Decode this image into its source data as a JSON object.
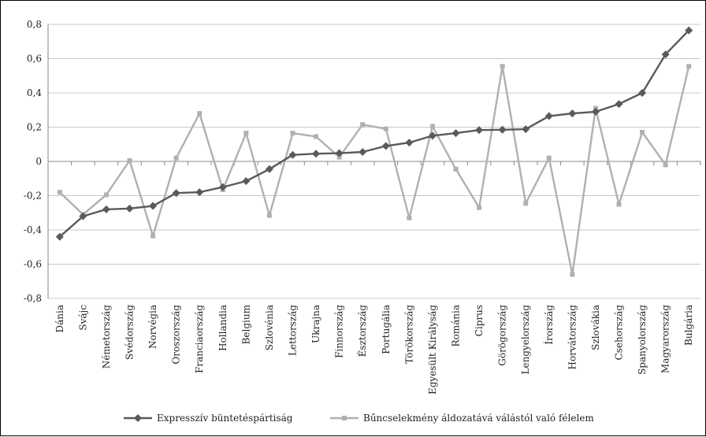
{
  "chart_data": {
    "type": "line",
    "title": "",
    "xlabel": "",
    "ylabel": "",
    "ylim": [
      -0.8,
      0.8
    ],
    "yticks": [
      "-0,8",
      "-0,6",
      "-0,4",
      "-0,2",
      "0",
      "0,2",
      "0,4",
      "0,6",
      "0,8"
    ],
    "grid": true,
    "legend_position": "bottom",
    "categories": [
      "Dánia",
      "Svájc",
      "Németország",
      "Svédország",
      "Norvégia",
      "Oroszország",
      "Franciaország",
      "Hollandia",
      "Belgium",
      "Szlovénia",
      "Lettország",
      "Ukrajna",
      "Finnország",
      "Észtország",
      "Portugália",
      "Törökország",
      "Egyesült Királyság",
      "Románia",
      "Ciprus",
      "Görögország",
      "Lengyelország",
      "Írország",
      "Horvátország",
      "Szlovákia",
      "Csehország",
      "Spanyolország",
      "Magyarország",
      "Bulgária"
    ],
    "series": [
      {
        "name": "Expresszív büntetéspártiság",
        "color": "#5a5a5a",
        "marker": "diamond",
        "values": [
          -0.44,
          -0.32,
          -0.28,
          -0.275,
          -0.26,
          -0.185,
          -0.18,
          -0.15,
          -0.115,
          -0.045,
          0.038,
          0.045,
          0.048,
          0.055,
          0.09,
          0.11,
          0.15,
          0.165,
          0.183,
          0.185,
          0.188,
          0.265,
          0.28,
          0.29,
          0.335,
          0.4,
          0.625,
          0.765
        ]
      },
      {
        "name": "Bűncselekmény áldozatává válástól való félelem",
        "color": "#b0b0b0",
        "marker": "square",
        "values": [
          -0.18,
          -0.31,
          -0.195,
          0.005,
          -0.435,
          0.02,
          0.28,
          -0.165,
          0.165,
          -0.315,
          0.165,
          0.145,
          0.025,
          0.215,
          0.19,
          -0.33,
          0.205,
          -0.045,
          -0.27,
          0.555,
          -0.245,
          0.02,
          -0.66,
          0.31,
          -0.25,
          0.17,
          -0.02,
          0.555
        ]
      }
    ]
  },
  "colors": {
    "grid": "#c8c8c8",
    "axis": "#888888"
  }
}
